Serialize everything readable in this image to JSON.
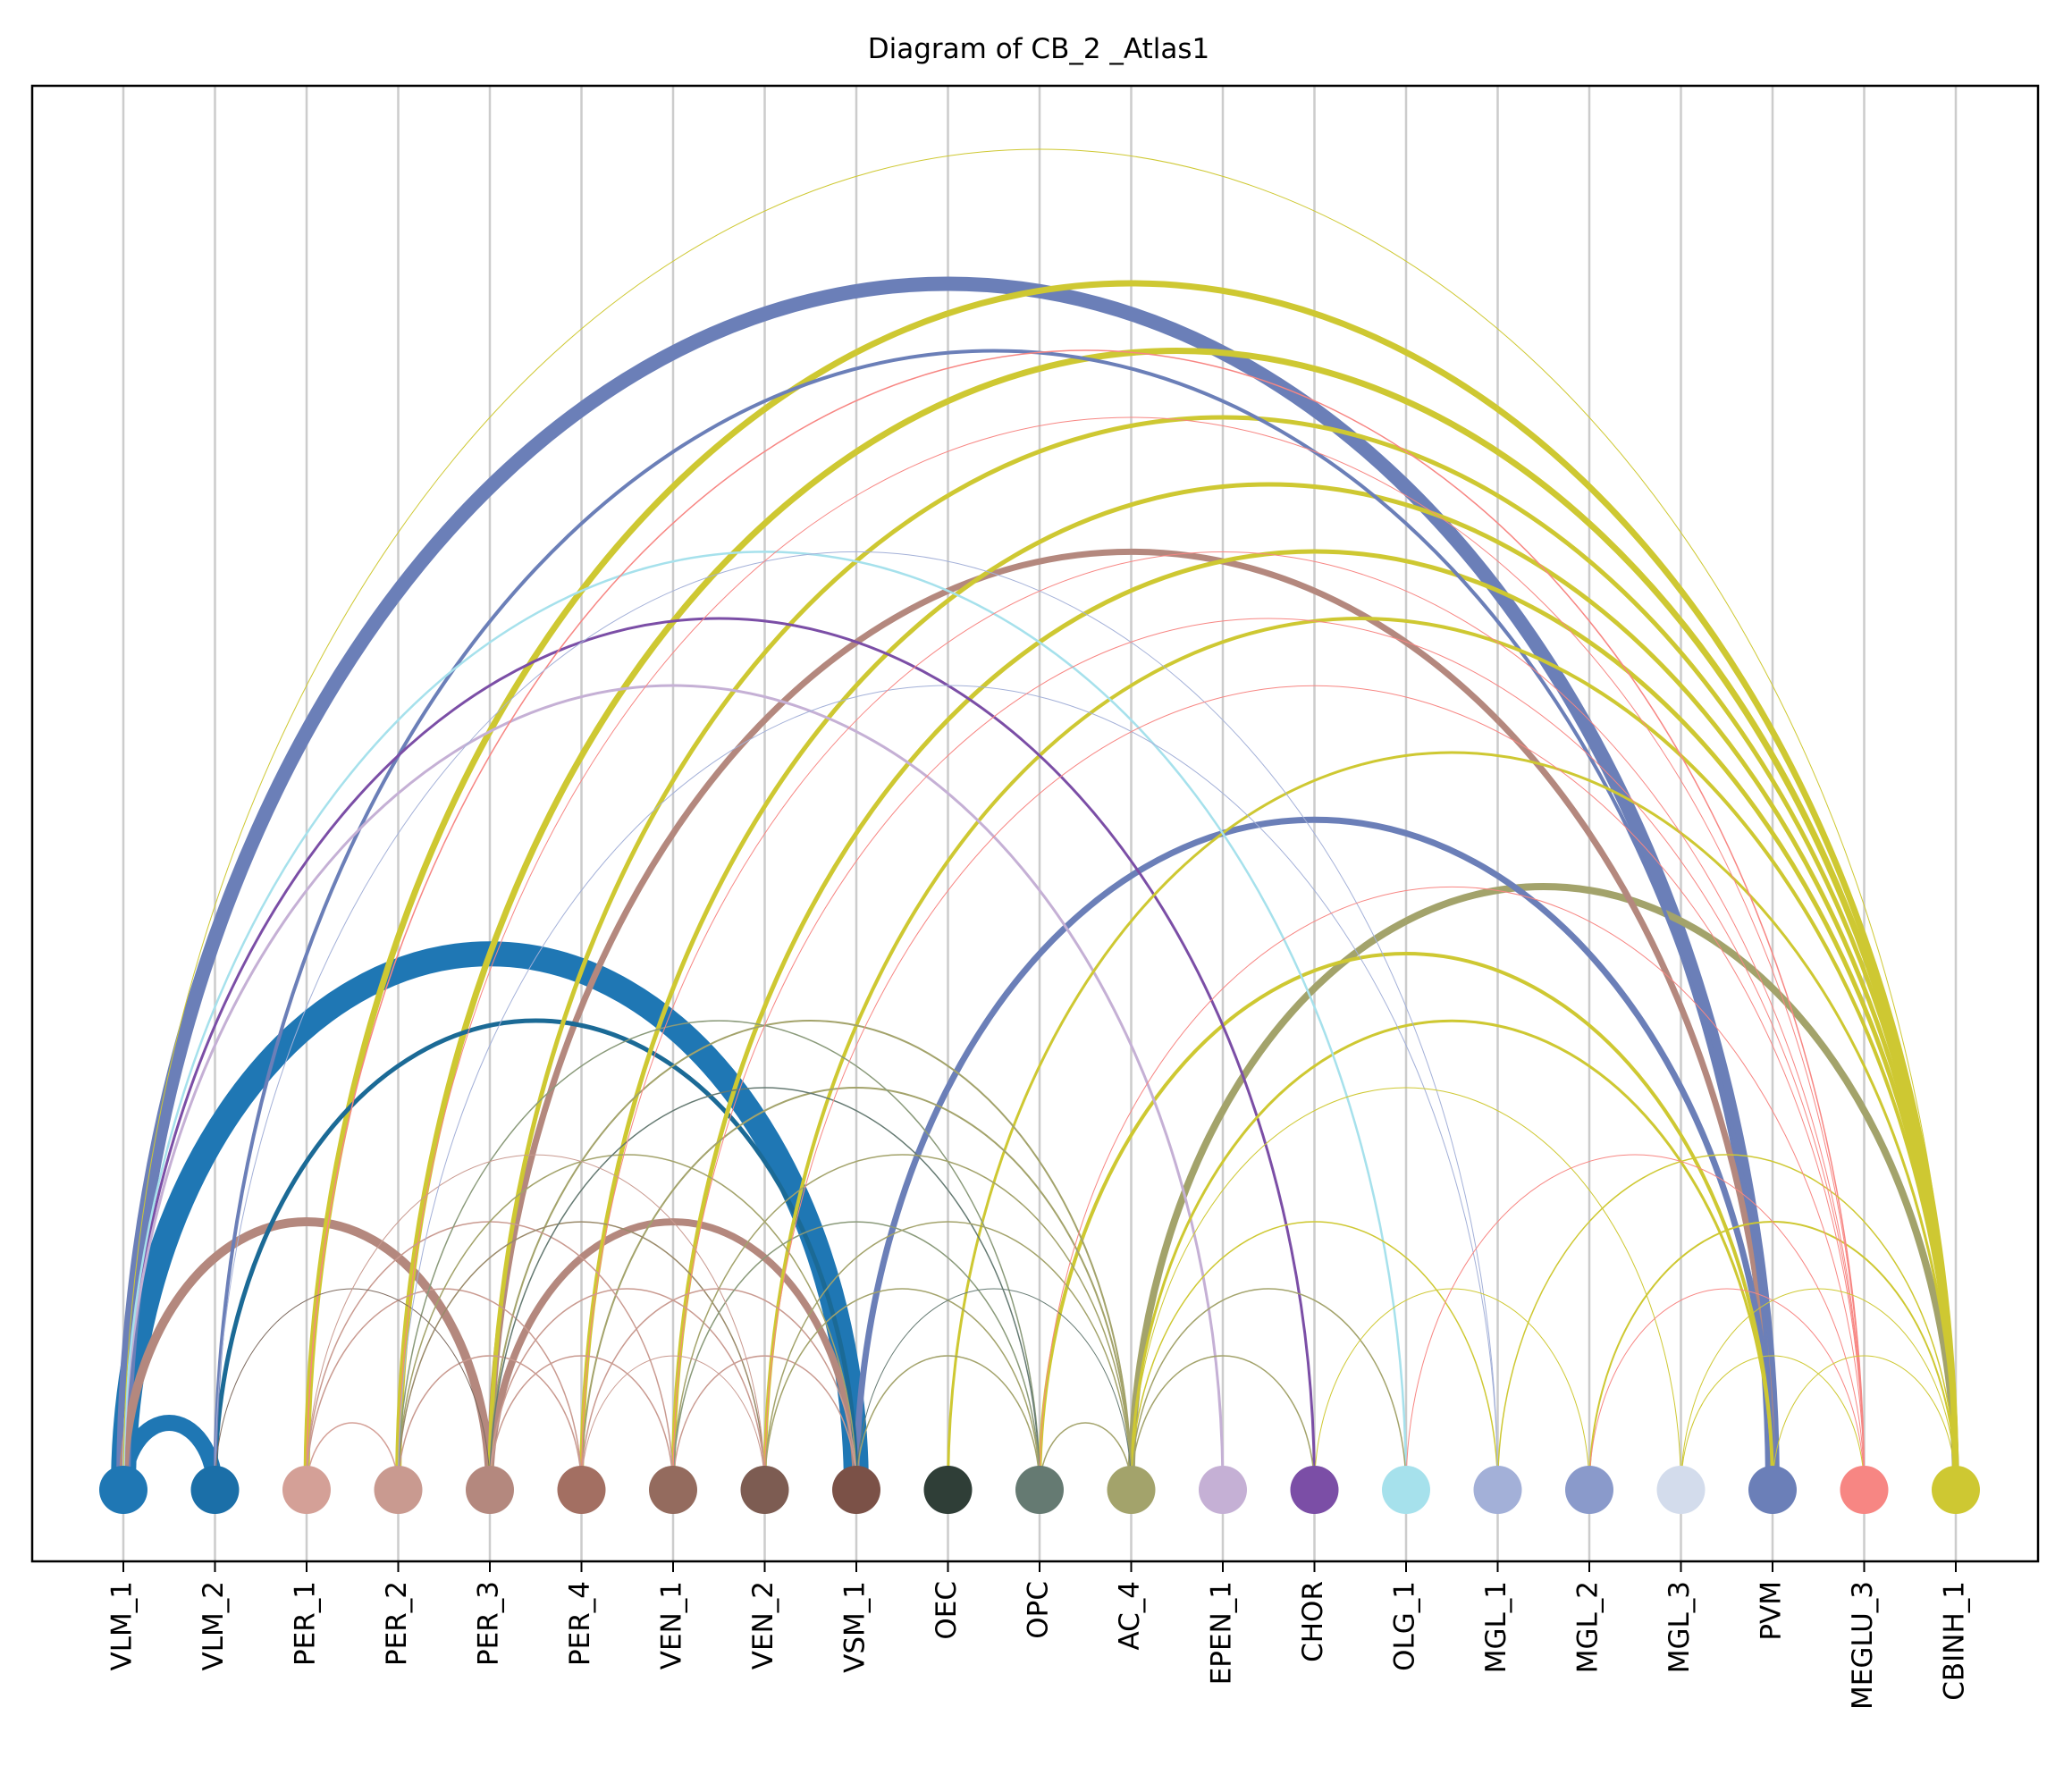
{
  "title": "Diagram of CB_2 _Atlas1",
  "nodes": [
    {
      "label": "VLM_1",
      "color": "#1f77b4"
    },
    {
      "label": "VLM_2",
      "color": "#1b6fa8"
    },
    {
      "label": "PER_1",
      "color": "#d4a097"
    },
    {
      "label": "PER_2",
      "color": "#c99a90"
    },
    {
      "label": "PER_3",
      "color": "#b4887e"
    },
    {
      "label": "PER_4",
      "color": "#a36f62"
    },
    {
      "label": "VEN_1",
      "color": "#946b5e"
    },
    {
      "label": "VEN_2",
      "color": "#7d5c52"
    },
    {
      "label": "VSM_1",
      "color": "#7b5147"
    },
    {
      "label": "OEC",
      "color": "#2f3e37"
    },
    {
      "label": "OPC",
      "color": "#657a72"
    },
    {
      "label": "AC_4",
      "color": "#a3a36b"
    },
    {
      "label": "EPEN_1",
      "color": "#c5b0d5"
    },
    {
      "label": "CHOR",
      "color": "#7b4ea6"
    },
    {
      "label": "OLG_1",
      "color": "#a6e1ec"
    },
    {
      "label": "MGL_1",
      "color": "#a3b0d8"
    },
    {
      "label": "MGL_2",
      "color": "#8a9acb"
    },
    {
      "label": "MGL_3",
      "color": "#d3dcec"
    },
    {
      "label": "PVM",
      "color": "#6b7fb8"
    },
    {
      "label": "MEGLU_3",
      "color": "#f78683"
    },
    {
      "label": "CBINH_1",
      "color": "#cec832"
    }
  ],
  "edges": [
    {
      "from": "VLM_1",
      "to": "VLM_2",
      "color": "#1f77b4",
      "weight": 18
    },
    {
      "from": "VLM_1",
      "to": "VSM_1",
      "color": "#1f77b4",
      "weight": 28
    },
    {
      "from": "VLM_2",
      "to": "VSM_1",
      "color": "#1b6a96",
      "weight": 5
    },
    {
      "from": "VLM_1",
      "to": "PVM",
      "color": "#6b7fb8",
      "weight": 16
    },
    {
      "from": "VLM_2",
      "to": "PVM",
      "color": "#6b7fb8",
      "weight": 4
    },
    {
      "from": "VLM_1",
      "to": "CBINH_1",
      "color": "#cec832",
      "weight": 1
    },
    {
      "from": "VLM_1",
      "to": "OLG_1",
      "color": "#a6e1ec",
      "weight": 2.5
    },
    {
      "from": "VLM_1",
      "to": "CHOR",
      "color": "#7b4ea6",
      "weight": 3
    },
    {
      "from": "VLM_1",
      "to": "EPEN_1",
      "color": "#c5b0d5",
      "weight": 3
    },
    {
      "from": "VLM_1",
      "to": "PER_3",
      "color": "#b4887e",
      "weight": 10
    },
    {
      "from": "VLM_2",
      "to": "MGL_1",
      "color": "#a3b0d8",
      "weight": 1
    },
    {
      "from": "VLM_2",
      "to": "PER_3",
      "color": "#7d6a5e",
      "weight": 1
    },
    {
      "from": "PER_1",
      "to": "CBINH_1",
      "color": "#cec832",
      "weight": 7
    },
    {
      "from": "PER_1",
      "to": "MEGLU_3",
      "color": "#f78683",
      "weight": 1.5
    },
    {
      "from": "PER_1",
      "to": "PER_2",
      "color": "#d4a097",
      "weight": 1.5
    },
    {
      "from": "PER_1",
      "to": "PER_4",
      "color": "#c99a90",
      "weight": 1.5
    },
    {
      "from": "PER_1",
      "to": "VEN_1",
      "color": "#c99a90",
      "weight": 1.5
    },
    {
      "from": "PER_1",
      "to": "VEN_2",
      "color": "#c99a90",
      "weight": 1
    },
    {
      "from": "PER_2",
      "to": "CBINH_1",
      "color": "#cec832",
      "weight": 7
    },
    {
      "from": "PER_2",
      "to": "MEGLU_3",
      "color": "#f78683",
      "weight": 1
    },
    {
      "from": "PER_2",
      "to": "VSM_1",
      "color": "#a3a36b",
      "weight": 1.5
    },
    {
      "from": "PER_2",
      "to": "PER_4",
      "color": "#c99a90",
      "weight": 1.5
    },
    {
      "from": "PER_2",
      "to": "VEN_2",
      "color": "#9a8a6a",
      "weight": 1.5
    },
    {
      "from": "PER_2",
      "to": "OPC",
      "color": "#8a9a7a",
      "weight": 1.5
    },
    {
      "from": "PER_2",
      "to": "MGL_1",
      "color": "#a3b0d8",
      "weight": 1
    },
    {
      "from": "PER_3",
      "to": "PVM",
      "color": "#b4887e",
      "weight": 7
    },
    {
      "from": "PER_3",
      "to": "VSM_1",
      "color": "#b4887e",
      "weight": 8
    },
    {
      "from": "PER_3",
      "to": "AC_4",
      "color": "#a3a36b",
      "weight": 2
    },
    {
      "from": "PER_3",
      "to": "OPC",
      "color": "#657a72",
      "weight": 1.5
    },
    {
      "from": "PER_3",
      "to": "VEN_2",
      "color": "#c99a90",
      "weight": 1.5
    },
    {
      "from": "PER_3",
      "to": "VEN_1",
      "color": "#c99a90",
      "weight": 1.5
    },
    {
      "from": "PER_3",
      "to": "CBINH_1",
      "color": "#cec832",
      "weight": 5
    },
    {
      "from": "PER_4",
      "to": "AC_4",
      "color": "#a3a36b",
      "weight": 2
    },
    {
      "from": "PER_4",
      "to": "VSM_1",
      "color": "#c99a90",
      "weight": 1.5
    },
    {
      "from": "PER_4",
      "to": "VEN_2",
      "color": "#c99a90",
      "weight": 1
    },
    {
      "from": "PER_4",
      "to": "MEGLU_3",
      "color": "#f78683",
      "weight": 1
    },
    {
      "from": "PER_4",
      "to": "CBINH_1",
      "color": "#cec832",
      "weight": 5
    },
    {
      "from": "VEN_1",
      "to": "CBINH_1",
      "color": "#cec832",
      "weight": 5
    },
    {
      "from": "VEN_1",
      "to": "MEGLU_3",
      "color": "#f78683",
      "weight": 1
    },
    {
      "from": "VEN_1",
      "to": "AC_4",
      "color": "#a3a36b",
      "weight": 1.5
    },
    {
      "from": "VEN_1",
      "to": "VSM_1",
      "color": "#c99a90",
      "weight": 1.5
    },
    {
      "from": "VEN_1",
      "to": "OPC",
      "color": "#8a9a7a",
      "weight": 1.5
    },
    {
      "from": "VEN_2",
      "to": "CBINH_1",
      "color": "#cec832",
      "weight": 4
    },
    {
      "from": "VEN_2",
      "to": "MEGLU_3",
      "color": "#f78683",
      "weight": 1
    },
    {
      "from": "VEN_2",
      "to": "OPC",
      "color": "#a3a36b",
      "weight": 1.5
    },
    {
      "from": "VEN_2",
      "to": "AC_4",
      "color": "#a3a36b",
      "weight": 1.5
    },
    {
      "from": "VSM_1",
      "to": "PVM",
      "color": "#6b7fb8",
      "weight": 7
    },
    {
      "from": "VSM_1",
      "to": "AC_4",
      "color": "#657a72",
      "weight": 1
    },
    {
      "from": "VSM_1",
      "to": "OPC",
      "color": "#a3a36b",
      "weight": 1.5
    },
    {
      "from": "OEC",
      "to": "CBINH_1",
      "color": "#cec832",
      "weight": 3
    },
    {
      "from": "OPC",
      "to": "AC_4",
      "color": "#a3a36b",
      "weight": 1.5
    },
    {
      "from": "OPC",
      "to": "PVM",
      "color": "#cec832",
      "weight": 4
    },
    {
      "from": "OPC",
      "to": "MEGLU_3",
      "color": "#f78683",
      "weight": 1
    },
    {
      "from": "AC_4",
      "to": "CBINH_1",
      "color": "#a3a36b",
      "weight": 8
    },
    {
      "from": "AC_4",
      "to": "PVM",
      "color": "#cec832",
      "weight": 3
    },
    {
      "from": "AC_4",
      "to": "CHOR",
      "color": "#a3a36b",
      "weight": 1.5
    },
    {
      "from": "AC_4",
      "to": "OLG_1",
      "color": "#a3a36b",
      "weight": 1.5
    },
    {
      "from": "AC_4",
      "to": "MGL_1",
      "color": "#cec832",
      "weight": 1.5
    },
    {
      "from": "AC_4",
      "to": "MGL_3",
      "color": "#cec832",
      "weight": 1
    },
    {
      "from": "CHOR",
      "to": "MGL_2",
      "color": "#cec832",
      "weight": 1
    },
    {
      "from": "OLG_1",
      "to": "MEGLU_3",
      "color": "#f78683",
      "weight": 1
    },
    {
      "from": "MGL_1",
      "to": "CBINH_1",
      "color": "#cec832",
      "weight": 1.5
    },
    {
      "from": "MGL_2",
      "to": "CBINH_1",
      "color": "#cec832",
      "weight": 2
    },
    {
      "from": "MGL_2",
      "to": "MEGLU_3",
      "color": "#f78683",
      "weight": 1
    },
    {
      "from": "MGL_3",
      "to": "CBINH_1",
      "color": "#cec832",
      "weight": 1
    },
    {
      "from": "MGL_3",
      "to": "MEGLU_3",
      "color": "#cec832",
      "weight": 1
    },
    {
      "from": "PVM",
      "to": "CBINH_1",
      "color": "#cec832",
      "weight": 1
    }
  ]
}
